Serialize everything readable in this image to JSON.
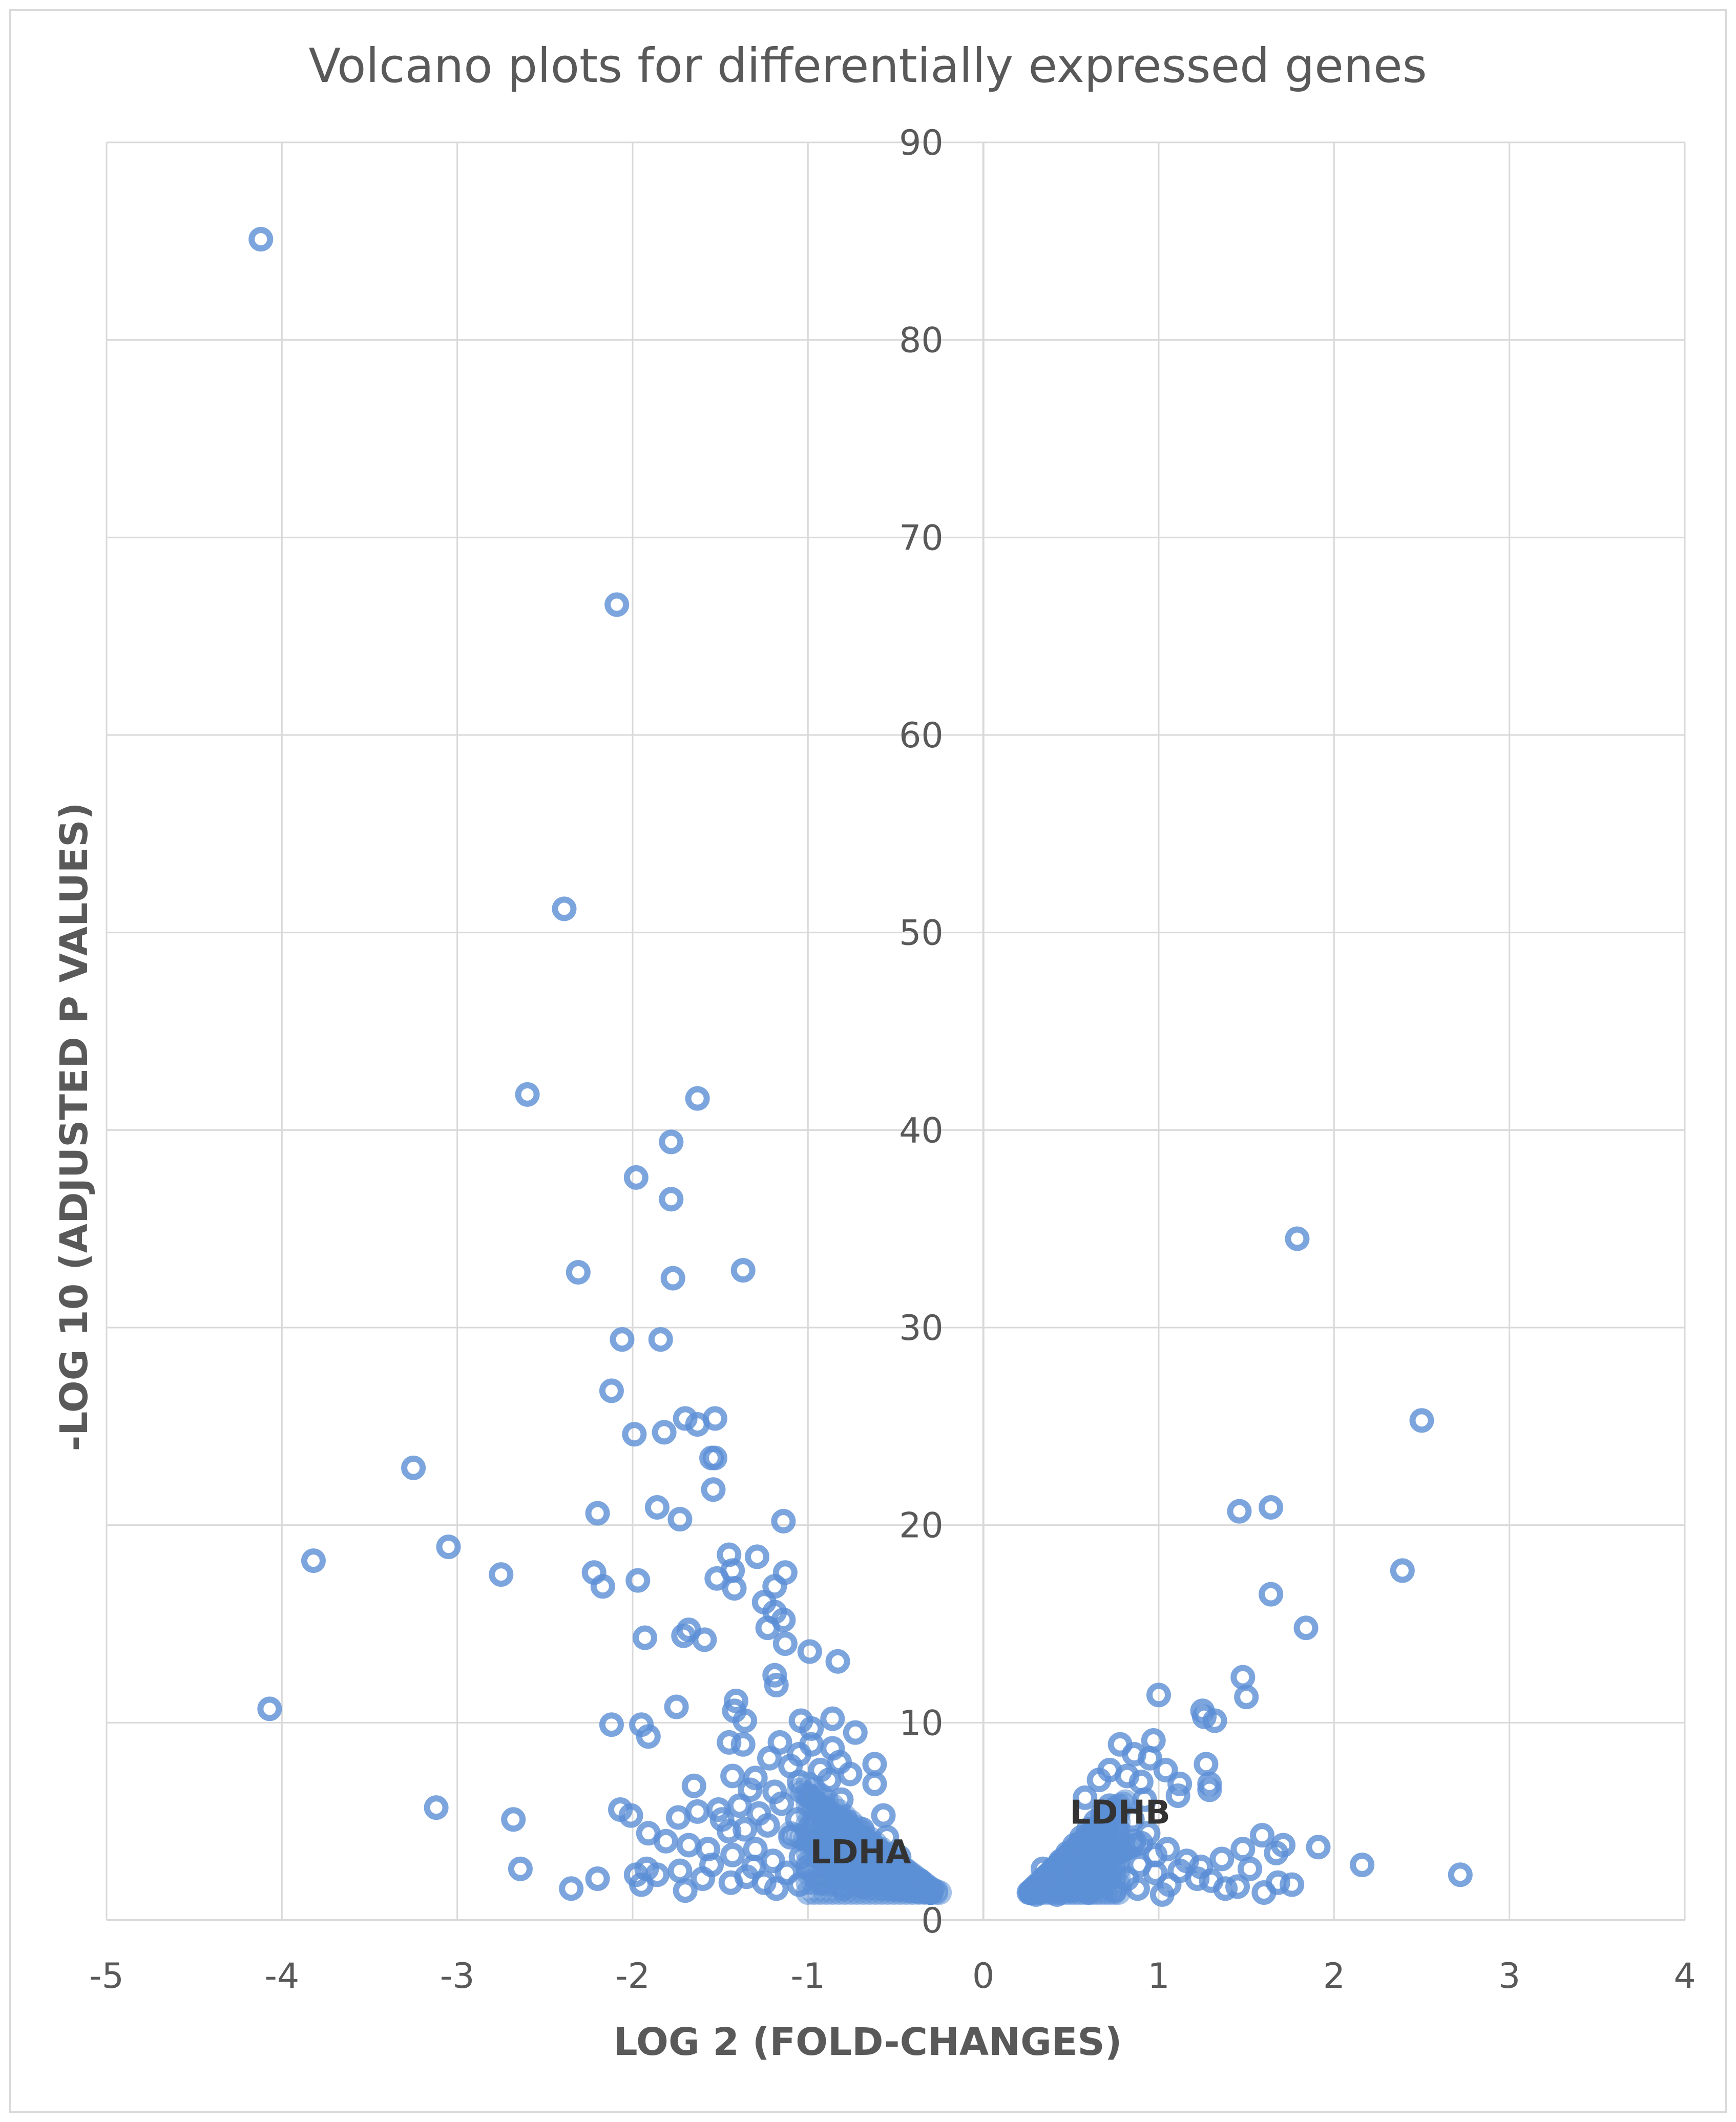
{
  "colors": {
    "point": "#5b8fd6",
    "grid": "#d9d9d9",
    "text": "#595959",
    "label": "#333333"
  },
  "chart_data": {
    "type": "scatter",
    "title": "Volcano plots for differentially expressed genes",
    "xlabel": "LOG 2 (FOLD-CHANGES)",
    "ylabel": "-LOG 10 (ADJUSTED P VALUES)",
    "xlim": [
      -5,
      4
    ],
    "ylim": [
      0,
      90
    ],
    "x_ticks": [
      -5,
      -4,
      -3,
      -2,
      -1,
      0,
      1,
      2,
      3,
      4
    ],
    "y_ticks": [
      0,
      10,
      20,
      30,
      40,
      50,
      60,
      70,
      80,
      90
    ],
    "grid": true,
    "legend": "none",
    "annotations": [
      {
        "text": "LDHA",
        "x": -0.7,
        "y": 3.4
      },
      {
        "text": "LDHB",
        "x": 0.78,
        "y": 5.4
      }
    ],
    "series": [
      {
        "points": [
          [
            -4.12,
            85.1
          ],
          [
            -2.09,
            66.6
          ],
          [
            -2.39,
            51.2
          ],
          [
            -2.6,
            41.8
          ],
          [
            -1.63,
            41.6
          ],
          [
            -1.78,
            39.4
          ],
          [
            -1.98,
            37.6
          ],
          [
            -1.78,
            36.5
          ],
          [
            -2.31,
            32.8
          ],
          [
            -1.37,
            32.9
          ],
          [
            -1.77,
            32.5
          ],
          [
            -2.06,
            29.4
          ],
          [
            -1.84,
            29.4
          ],
          [
            -2.12,
            26.8
          ],
          [
            -1.7,
            25.4
          ],
          [
            -1.53,
            25.4
          ],
          [
            -1.63,
            25.1
          ],
          [
            -1.82,
            24.7
          ],
          [
            -1.99,
            24.6
          ],
          [
            -1.55,
            23.4
          ],
          [
            -1.53,
            23.4
          ],
          [
            -1.54,
            21.8
          ],
          [
            -3.25,
            22.9
          ],
          [
            -1.86,
            20.9
          ],
          [
            -2.2,
            20.6
          ],
          [
            -1.73,
            20.3
          ],
          [
            -1.14,
            20.2
          ],
          [
            -3.05,
            18.9
          ],
          [
            -3.82,
            18.2
          ],
          [
            -2.75,
            17.5
          ],
          [
            -2.22,
            17.6
          ],
          [
            -2.17,
            16.9
          ],
          [
            -1.97,
            17.2
          ],
          [
            -1.45,
            18.5
          ],
          [
            -1.29,
            18.4
          ],
          [
            -1.43,
            17.7
          ],
          [
            -1.52,
            17.3
          ],
          [
            -1.13,
            17.6
          ],
          [
            -1.19,
            16.9
          ],
          [
            -1.42,
            16.8
          ],
          [
            -1.25,
            16.1
          ],
          [
            -1.19,
            15.6
          ],
          [
            -1.14,
            15.2
          ],
          [
            -1.23,
            14.8
          ],
          [
            -1.68,
            14.7
          ],
          [
            -1.71,
            14.4
          ],
          [
            -1.93,
            14.3
          ],
          [
            -1.59,
            14.2
          ],
          [
            -1.13,
            14.0
          ],
          [
            -0.99,
            13.6
          ],
          [
            -0.83,
            13.1
          ],
          [
            -1.19,
            12.4
          ],
          [
            -1.18,
            11.9
          ],
          [
            -1.41,
            11.1
          ],
          [
            -1.42,
            10.6
          ],
          [
            -1.75,
            10.8
          ],
          [
            -1.36,
            10.1
          ],
          [
            -1.04,
            10.1
          ],
          [
            -0.98,
            9.7
          ],
          [
            -0.86,
            10.2
          ],
          [
            -2.12,
            9.9
          ],
          [
            -1.95,
            9.9
          ],
          [
            -1.91,
            9.3
          ],
          [
            -1.45,
            9.0
          ],
          [
            -1.37,
            8.9
          ],
          [
            -1.16,
            9.0
          ],
          [
            -0.98,
            8.9
          ],
          [
            -0.73,
            9.5
          ],
          [
            -0.86,
            8.7
          ],
          [
            -1.05,
            8.4
          ],
          [
            -1.22,
            8.2
          ],
          [
            -0.82,
            8.0
          ],
          [
            -0.62,
            7.9
          ],
          [
            -1.1,
            7.8
          ],
          [
            -0.93,
            7.6
          ],
          [
            -0.76,
            7.4
          ],
          [
            -1.43,
            7.3
          ],
          [
            -1.3,
            7.2
          ],
          [
            -0.88,
            7.1
          ],
          [
            -1.05,
            7.0
          ],
          [
            -0.62,
            6.9
          ],
          [
            -1.65,
            6.8
          ],
          [
            -1.33,
            6.6
          ],
          [
            -1.19,
            6.5
          ],
          [
            -0.99,
            6.3
          ],
          [
            -0.81,
            6.1
          ],
          [
            -1.15,
            5.9
          ],
          [
            -1.39,
            5.8
          ],
          [
            -2.07,
            5.6
          ],
          [
            -1.51,
            5.6
          ],
          [
            -1.63,
            5.5
          ],
          [
            -1.28,
            5.4
          ],
          [
            -0.93,
            5.4
          ],
          [
            -0.57,
            5.3
          ],
          [
            -2.01,
            5.3
          ],
          [
            -1.74,
            5.2
          ],
          [
            -1.49,
            5.1
          ],
          [
            -1.06,
            5.1
          ],
          [
            -0.78,
            5.0
          ],
          [
            -1.23,
            4.8
          ],
          [
            -0.99,
            4.7
          ],
          [
            -1.36,
            4.6
          ],
          [
            -0.69,
            4.6
          ],
          [
            -1.45,
            4.5
          ],
          [
            -1.81,
            4.0
          ],
          [
            -1.91,
            4.4
          ],
          [
            -1.68,
            3.8
          ],
          [
            -1.1,
            4.2
          ],
          [
            -0.85,
            4.0
          ],
          [
            -0.55,
            4.2
          ],
          [
            -1.57,
            3.6
          ],
          [
            -1.3,
            3.6
          ],
          [
            -0.91,
            3.6
          ],
          [
            -0.67,
            3.5
          ],
          [
            -1.43,
            3.3
          ],
          [
            -1.04,
            3.2
          ],
          [
            -0.79,
            3.3
          ],
          [
            -0.48,
            3.2
          ],
          [
            -1.2,
            3.0
          ],
          [
            -0.9,
            3.0
          ],
          [
            -0.6,
            2.9
          ],
          [
            -1.55,
            2.8
          ],
          [
            -1.31,
            2.7
          ],
          [
            -1.73,
            2.5
          ],
          [
            -1.92,
            2.6
          ],
          [
            -1.98,
            2.3
          ],
          [
            -1.86,
            2.3
          ],
          [
            -2.64,
            2.6
          ],
          [
            -2.68,
            5.1
          ],
          [
            -3.12,
            5.7
          ],
          [
            -4.07,
            10.7
          ],
          [
            -2.2,
            2.1
          ],
          [
            -2.35,
            1.6
          ],
          [
            -1.95,
            1.8
          ],
          [
            -1.7,
            1.5
          ],
          [
            -1.44,
            1.9
          ],
          [
            -1.18,
            1.6
          ],
          [
            -0.92,
            1.9
          ],
          [
            -0.68,
            1.7
          ],
          [
            -0.42,
            1.8
          ],
          [
            -0.3,
            1.4
          ],
          [
            -1.6,
            2.1
          ],
          [
            -1.12,
            2.4
          ],
          [
            -0.82,
            2.2
          ],
          [
            -0.56,
            2.4
          ],
          [
            -0.36,
            2.0
          ],
          [
            -1.35,
            2.2
          ],
          [
            -0.74,
            2.6
          ],
          [
            -0.5,
            1.6
          ],
          [
            -1.0,
            2.7
          ],
          [
            -0.65,
            3.9
          ],
          [
            -0.58,
            2.2
          ],
          [
            -0.8,
            1.6
          ],
          [
            -1.05,
            1.8
          ],
          [
            -1.25,
            1.9
          ],
          [
            -0.4,
            1.5
          ],
          [
            -0.33,
            1.7
          ],
          [
            0.28,
            1.4
          ],
          [
            0.32,
            1.8
          ],
          [
            0.36,
            2.2
          ],
          [
            0.4,
            2.6
          ],
          [
            0.44,
            3.0
          ],
          [
            0.48,
            3.4
          ],
          [
            0.52,
            3.8
          ],
          [
            0.56,
            4.2
          ],
          [
            0.6,
            4.6
          ],
          [
            0.64,
            5.0
          ],
          [
            0.68,
            5.4
          ],
          [
            0.72,
            5.8
          ],
          [
            0.38,
            1.6
          ],
          [
            0.46,
            2.0
          ],
          [
            0.54,
            2.4
          ],
          [
            0.62,
            2.8
          ],
          [
            0.7,
            3.2
          ],
          [
            0.78,
            3.6
          ],
          [
            0.86,
            4.0
          ],
          [
            0.94,
            4.4
          ],
          [
            0.5,
            1.5
          ],
          [
            0.66,
            1.8
          ],
          [
            0.82,
            2.1
          ],
          [
            0.98,
            2.4
          ],
          [
            0.58,
            6.2
          ],
          [
            0.66,
            7.1
          ],
          [
            0.72,
            7.6
          ],
          [
            0.78,
            8.9
          ],
          [
            0.86,
            8.4
          ],
          [
            0.97,
            9.1
          ],
          [
            0.95,
            8.2
          ],
          [
            0.82,
            7.3
          ],
          [
            0.9,
            7.0
          ],
          [
            1.04,
            7.6
          ],
          [
            1.12,
            6.9
          ],
          [
            1.11,
            6.3
          ],
          [
            0.92,
            6.1
          ],
          [
            0.74,
            5.6
          ],
          [
            0.85,
            5.1
          ],
          [
            1.0,
            11.4
          ],
          [
            1.25,
            10.6
          ],
          [
            1.32,
            10.1
          ],
          [
            1.26,
            10.3
          ],
          [
            1.27,
            7.9
          ],
          [
            1.29,
            6.9
          ],
          [
            1.29,
            6.6
          ],
          [
            1.48,
            12.3
          ],
          [
            1.5,
            11.3
          ],
          [
            1.46,
            20.7
          ],
          [
            1.64,
            20.9
          ],
          [
            1.79,
            34.5
          ],
          [
            2.5,
            25.3
          ],
          [
            2.39,
            17.7
          ],
          [
            1.64,
            16.5
          ],
          [
            1.84,
            14.8
          ],
          [
            1.59,
            4.3
          ],
          [
            1.71,
            3.8
          ],
          [
            1.91,
            3.7
          ],
          [
            2.16,
            2.8
          ],
          [
            2.72,
            2.3
          ],
          [
            1.48,
            3.6
          ],
          [
            1.67,
            3.4
          ],
          [
            1.52,
            2.6
          ],
          [
            1.76,
            1.8
          ],
          [
            1.68,
            1.9
          ],
          [
            1.6,
            1.4
          ],
          [
            1.38,
            1.6
          ],
          [
            1.22,
            2.1
          ],
          [
            1.06,
            1.8
          ],
          [
            1.24,
            2.7
          ],
          [
            1.36,
            3.1
          ],
          [
            1.16,
            3.0
          ],
          [
            1.02,
            1.3
          ],
          [
            0.89,
            2.8
          ],
          [
            1.45,
            1.7
          ],
          [
            1.3,
            2.0
          ],
          [
            0.98,
            3.3
          ],
          [
            0.9,
            3.9
          ],
          [
            1.05,
            3.6
          ],
          [
            1.12,
            2.5
          ],
          [
            0.3,
            1.3
          ],
          [
            0.42,
            1.3
          ],
          [
            0.6,
            1.4
          ],
          [
            0.75,
            1.5
          ],
          [
            0.88,
            1.6
          ],
          [
            0.34,
            2.6
          ],
          [
            0.52,
            3.0
          ],
          [
            0.6,
            3.6
          ],
          [
            0.68,
            4.0
          ],
          [
            0.76,
            4.6
          ]
        ]
      }
    ]
  }
}
